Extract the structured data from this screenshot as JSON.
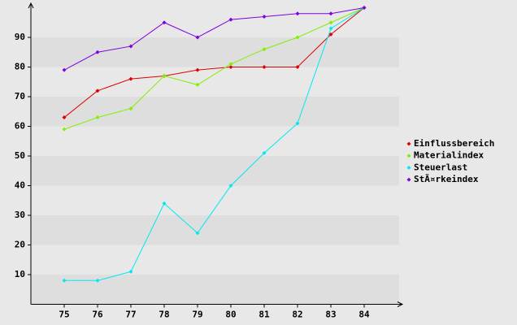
{
  "chart_data": {
    "type": "line",
    "x": [
      75,
      76,
      77,
      78,
      79,
      80,
      81,
      82,
      83,
      84
    ],
    "xlim": [
      74,
      85
    ],
    "xticks": [
      75,
      76,
      77,
      78,
      79,
      80,
      81,
      82,
      83,
      84
    ],
    "ylim": [
      0,
      100
    ],
    "yticks": [
      10,
      20,
      30,
      40,
      50,
      60,
      70,
      80,
      90
    ],
    "grid": true,
    "legend": "right",
    "series": [
      {
        "name": "Einflussbereich",
        "color": "#e00000",
        "values": [
          63,
          72,
          76,
          77,
          79,
          80,
          80,
          80,
          91,
          100
        ]
      },
      {
        "name": "Materialindex",
        "color": "#80f000",
        "values": [
          59,
          63,
          66,
          77,
          74,
          81,
          86,
          90,
          95,
          100
        ]
      },
      {
        "name": "Steuerlast",
        "color": "#00e8f0",
        "values": [
          8,
          8,
          11,
          34,
          24,
          40,
          51,
          61,
          93,
          100
        ]
      },
      {
        "name": "StÃ¤rkeindex",
        "color": "#8000e0",
        "values": [
          79,
          85,
          87,
          95,
          90,
          96,
          97,
          98,
          98,
          100
        ]
      }
    ]
  }
}
